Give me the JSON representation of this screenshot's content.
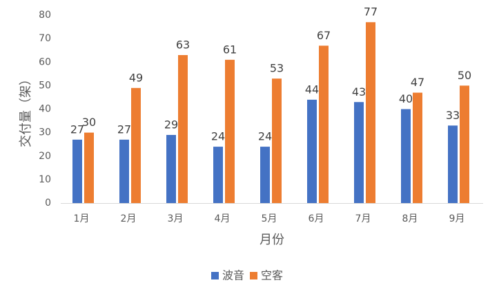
{
  "chart_data": {
    "type": "bar",
    "y_label": "交付量（架）",
    "x_label": "月份",
    "categories": [
      "1月",
      "2月",
      "3月",
      "4月",
      "5月",
      "6月",
      "7月",
      "8月",
      "9月"
    ],
    "series": [
      {
        "name": "波音",
        "color": "#4472c4",
        "values": [
          27,
          27,
          29,
          24,
          24,
          44,
          43,
          40,
          33
        ]
      },
      {
        "name": "空客",
        "color": "#ed7d31",
        "values": [
          30,
          49,
          63,
          61,
          53,
          67,
          77,
          47,
          50
        ]
      }
    ],
    "ylim": [
      0,
      80
    ],
    "yticks": [
      0,
      10,
      20,
      30,
      40,
      50,
      60,
      70,
      80
    ],
    "grid": false,
    "legend": "bottom"
  }
}
